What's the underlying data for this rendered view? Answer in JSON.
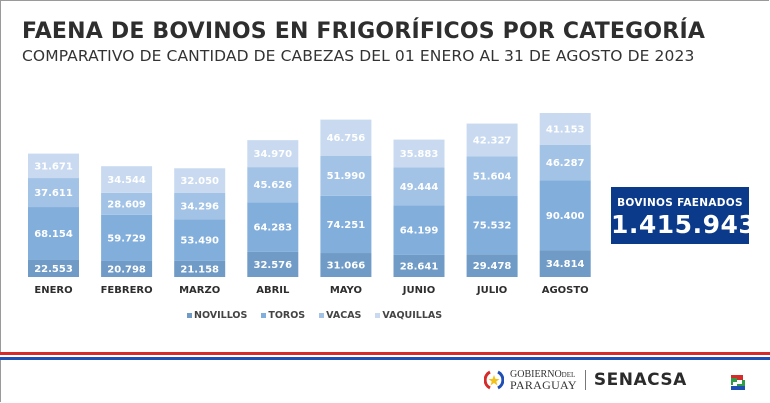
{
  "header": {
    "title": "FAENA DE BOVINOS EN FRIGORÍFICOS POR CATEGORÍA",
    "subtitle": "COMPARATIVO DE CANTIDAD DE CABEZAS DEL 01 ENERO AL 31 DE AGOSTO DE 2023"
  },
  "total": {
    "label": "BOVINOS FAENADOS",
    "value": "1.415.943"
  },
  "footer": {
    "gov_line1": "GOBIERNO",
    "gov_line1_small": "DEL",
    "gov_line2": "PARAGUAY",
    "agency": "SENACSA",
    "gov_icon": "paraguay-seal-icon",
    "agency_icon": "senacsa-logo-icon"
  },
  "chart_data": {
    "type": "bar",
    "stacked": true,
    "title": "FAENA DE BOVINOS EN FRIGORÍFICOS POR CATEGORÍA",
    "subtitle": "COMPARATIVO DE CANTIDAD DE CABEZAS DEL 01 ENERO AL 31 DE AGOSTO DE 2023",
    "xlabel": "",
    "ylabel": "",
    "grid": false,
    "legend_position": "bottom",
    "categories": [
      "ENERO",
      "FEBRERO",
      "MARZO",
      "ABRIL",
      "MAYO",
      "JUNIO",
      "JULIO",
      "AGOSTO"
    ],
    "series": [
      {
        "name": "NOVILLOS",
        "color": "#6f9bc6",
        "values": [
          22553,
          20798,
          21158,
          32576,
          31066,
          28641,
          29478,
          34814
        ],
        "labels": [
          "22.553",
          "20.798",
          "21.158",
          "32.576",
          "31.066",
          "28.641",
          "29.478",
          "34.814"
        ]
      },
      {
        "name": "TOROS",
        "color": "#82aedb",
        "values": [
          68154,
          59729,
          53490,
          64283,
          74251,
          64199,
          75532,
          90400
        ],
        "labels": [
          "68.154",
          "59.729",
          "53.490",
          "64.283",
          "74.251",
          "64.199",
          "75.532",
          "90.400"
        ]
      },
      {
        "name": "VACAS",
        "color": "#a3c3e6",
        "values": [
          37611,
          28609,
          34296,
          45626,
          51990,
          49444,
          51604,
          46287
        ],
        "labels": [
          "37.611",
          "28.609",
          "34.296",
          "45.626",
          "51.990",
          "49.444",
          "51.604",
          "46.287"
        ]
      },
      {
        "name": "VAQUILLAS",
        "color": "#c9daf0",
        "values": [
          31671,
          34544,
          32050,
          34970,
          46756,
          35883,
          42327,
          41153
        ],
        "labels": [
          "31.671",
          "34.544",
          "32.050",
          "34.970",
          "46.756",
          "35.883",
          "42.327",
          "41.153"
        ]
      }
    ],
    "ylim": [
      0,
      212654
    ]
  }
}
